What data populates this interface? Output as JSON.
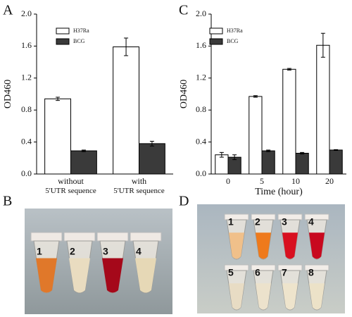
{
  "chart_data": [
    {
      "type": "bar",
      "panel": "A",
      "y_label": "OD460",
      "categories": [
        "without\n5'UTR sequence",
        "with\n5'UTR sequence"
      ],
      "series": [
        {
          "name": "H37Ra",
          "color": "#ffffff",
          "values": [
            0.94,
            1.59
          ],
          "errors": [
            0.02,
            0.11
          ]
        },
        {
          "name": "BCG",
          "color": "#3a3a3a",
          "values": [
            0.29,
            0.38
          ],
          "errors": [
            0.01,
            0.03
          ]
        }
      ],
      "ylim": [
        0,
        2
      ],
      "yticks": [
        {
          "value": 0,
          "label": "0.0"
        },
        0.4,
        0.8,
        1.2,
        1.6,
        {
          "value": 2,
          "label": "2.0"
        }
      ]
    },
    {
      "type": "bar",
      "panel": "C",
      "y_label": "OD460",
      "x_label": "Time (hour)",
      "categories": [
        "0",
        "5",
        "10",
        "20"
      ],
      "series": [
        {
          "name": "H37Ra",
          "color": "#ffffff",
          "values": [
            0.24,
            0.97,
            1.31,
            1.61
          ],
          "errors": [
            0.03,
            0.01,
            0.01,
            0.15
          ]
        },
        {
          "name": "BCG",
          "color": "#3a3a3a",
          "values": [
            0.21,
            0.29,
            0.26,
            0.3
          ],
          "errors": [
            0.03,
            0.01,
            0.01,
            0.005
          ]
        }
      ],
      "ylim": [
        0,
        2
      ],
      "yticks": [
        {
          "value": 0,
          "label": "0.0"
        },
        0.4,
        0.8,
        1.2,
        1.6,
        {
          "value": 2,
          "label": "2.0"
        }
      ]
    }
  ],
  "photos": [
    {
      "panel": "B",
      "labels": [
        "1",
        "2",
        "3",
        "4"
      ]
    },
    {
      "panel": "D",
      "labels": [
        "1",
        "2",
        "3",
        "4",
        "5",
        "6",
        "7",
        "8"
      ]
    }
  ]
}
